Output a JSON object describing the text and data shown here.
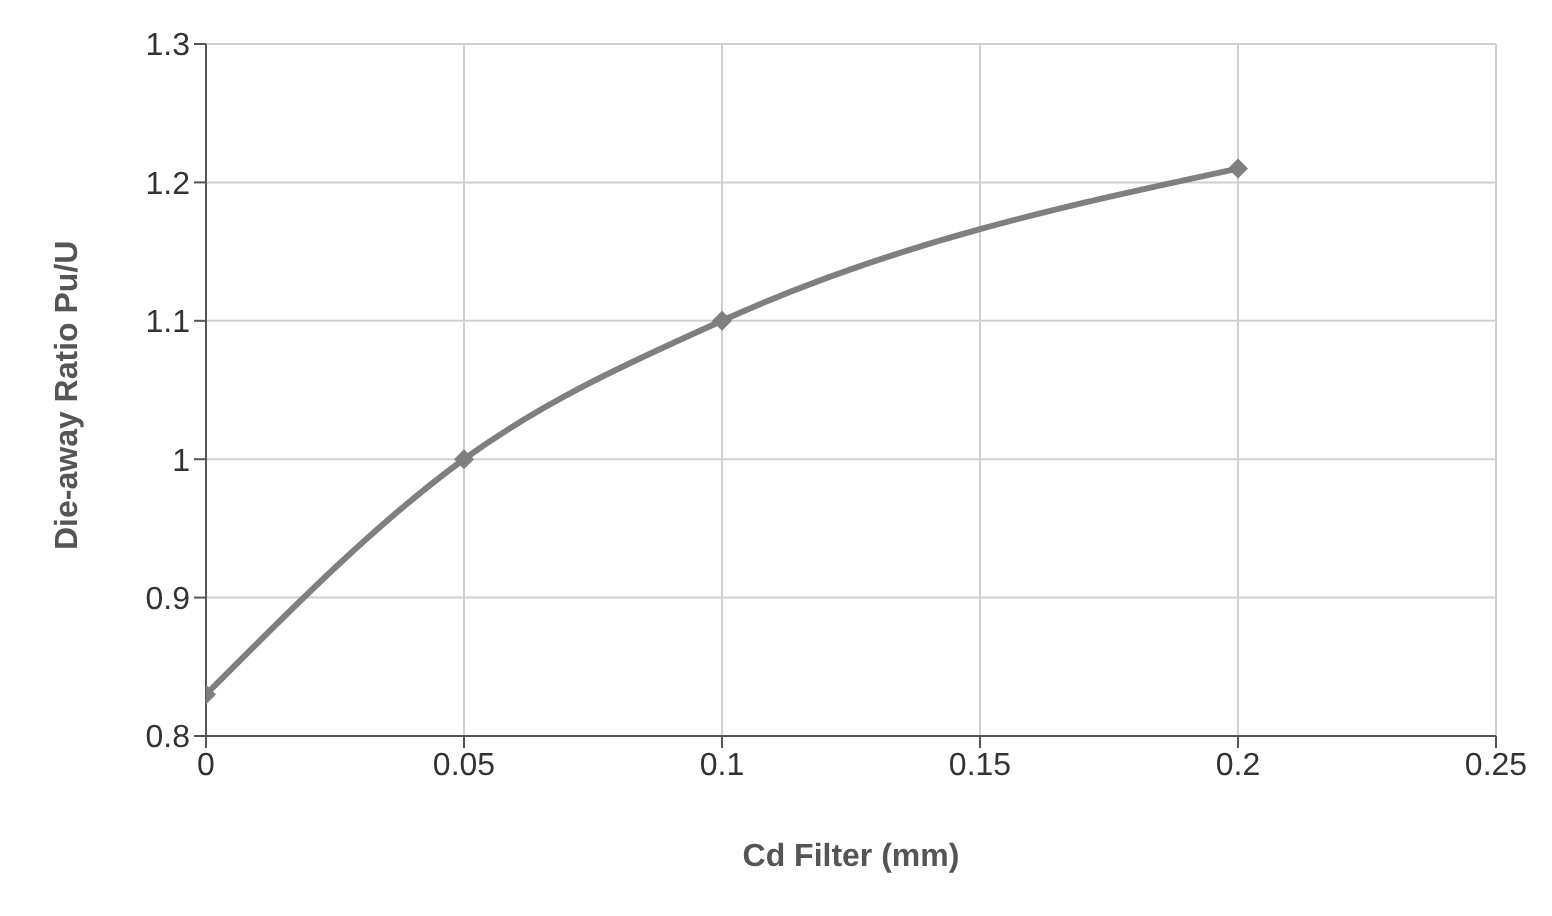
{
  "chart_data": {
    "type": "line",
    "xlabel": "Cd Filter (mm)",
    "ylabel": "Die-away Ratio Pu/U",
    "x": [
      0,
      0.05,
      0.1,
      0.2
    ],
    "series": [
      {
        "color": "#7f7f7f",
        "values": [
          0.83,
          1.0,
          1.1,
          1.21
        ]
      }
    ],
    "xlim": [
      0,
      0.25
    ],
    "xticks": [
      0,
      0.05,
      0.1,
      0.15,
      0.2,
      0.25
    ],
    "ylim": [
      0.8,
      1.3
    ],
    "yticks": [
      0.8,
      0.9,
      1,
      1.1,
      1.2,
      1.3
    ],
    "grid": true,
    "marker": "diamond",
    "line_style": "solid"
  }
}
